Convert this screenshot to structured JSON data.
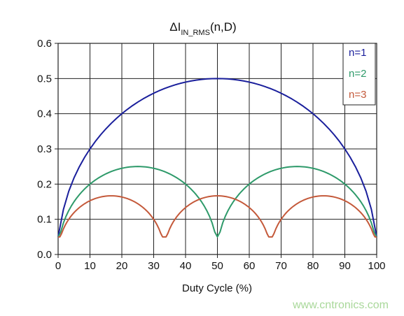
{
  "chart_data": {
    "type": "line",
    "title": {
      "main": "ΔI",
      "subscript": "IN_RMS",
      "suffix": "(n,D)"
    },
    "xlabel": "Duty Cycle (%)",
    "ylabel": "",
    "xlim": [
      0,
      100
    ],
    "ylim": [
      0,
      0.6
    ],
    "x_ticks": [
      "0",
      "10",
      "20",
      "30",
      "40",
      "50",
      "60",
      "70",
      "80",
      "90",
      "100"
    ],
    "y_ticks": [
      "0.0",
      "0.1",
      "0.2",
      "0.3",
      "0.4",
      "0.5",
      "0.6"
    ],
    "grid": true,
    "legend_position": "top-right",
    "series": [
      {
        "name": "n=1",
        "color": "#1a1f9c",
        "x": [
          0,
          5,
          10,
          15,
          20,
          25,
          30,
          35,
          40,
          45,
          50,
          55,
          60,
          65,
          70,
          75,
          80,
          85,
          90,
          95,
          100
        ],
        "y": [
          0,
          0.218,
          0.3,
          0.357,
          0.4,
          0.433,
          0.458,
          0.477,
          0.49,
          0.497,
          0.5,
          0.497,
          0.49,
          0.477,
          0.458,
          0.433,
          0.4,
          0.357,
          0.3,
          0.218,
          0
        ]
      },
      {
        "name": "n=2",
        "color": "#2e9a6a",
        "x": [
          0,
          5,
          10,
          15,
          20,
          25,
          30,
          35,
          40,
          45,
          50,
          55,
          60,
          65,
          70,
          75,
          80,
          85,
          90,
          95,
          100
        ],
        "y": [
          0.05,
          0.15,
          0.2,
          0.229,
          0.245,
          0.25,
          0.245,
          0.229,
          0.2,
          0.15,
          0.05,
          0.15,
          0.2,
          0.229,
          0.245,
          0.25,
          0.245,
          0.229,
          0.2,
          0.15,
          0.05
        ]
      },
      {
        "name": "n=3",
        "color": "#c4593a",
        "x": [
          0,
          3.3,
          6.7,
          10,
          13.3,
          16.7,
          20,
          23.3,
          26.7,
          30,
          33.3,
          36.7,
          40,
          43.3,
          46.7,
          50,
          53.3,
          56.7,
          60,
          63.3,
          66.7,
          70,
          73.3,
          76.7,
          80,
          83.3,
          86.7,
          90,
          93.3,
          96.7,
          100
        ],
        "y": [
          0.05,
          0.111,
          0.143,
          0.162,
          0.174,
          0.178,
          0.174,
          0.162,
          0.143,
          0.111,
          0.05,
          0.111,
          0.143,
          0.162,
          0.174,
          0.178,
          0.174,
          0.162,
          0.143,
          0.111,
          0.05,
          0.111,
          0.143,
          0.162,
          0.174,
          0.178,
          0.174,
          0.162,
          0.143,
          0.111,
          0.05
        ]
      }
    ]
  },
  "watermark": "www.cntronics.com",
  "colors": {
    "grid": "#222222",
    "frame": "#222222",
    "background": "#ffffff"
  }
}
